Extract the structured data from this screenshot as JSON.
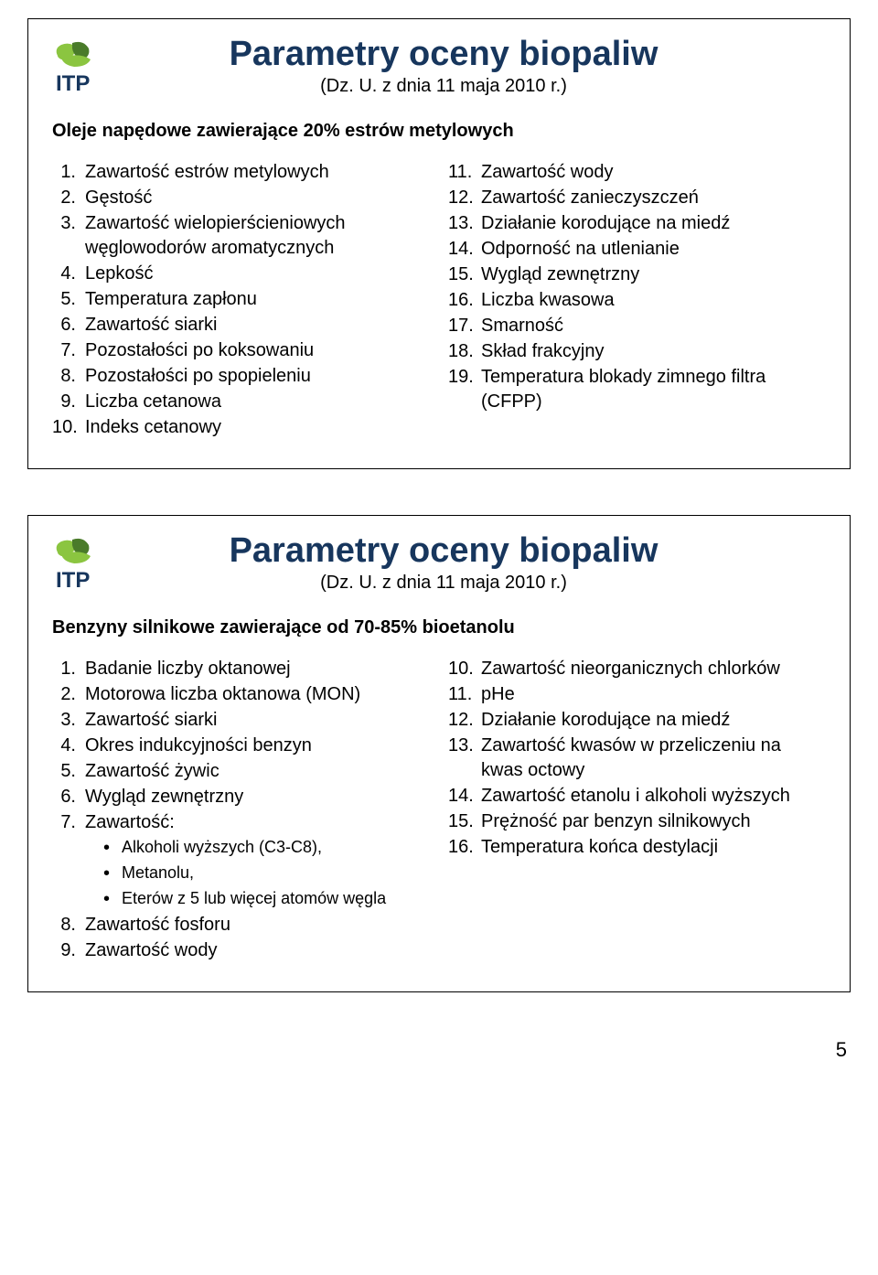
{
  "colors": {
    "title": "#17365d",
    "text": "#000000",
    "border": "#000000",
    "logo_green_light": "#8bc540",
    "logo_green_dark": "#4a7b2a",
    "logo_blue": "#17365d"
  },
  "page_number": "5",
  "slides": [
    {
      "title": "Parametry oceny biopaliw",
      "subtitle": "(Dz. U. z dnia 11 maja 2010 r.)",
      "section": "Oleje napędowe zawierające 20% estrów metylowych",
      "left": [
        {
          "n": "1.",
          "t": "Zawartość estrów metylowych"
        },
        {
          "n": "2.",
          "t": "Gęstość"
        },
        {
          "n": "3.",
          "t": "Zawartość wielopierścieniowych węglowodorów aromatycznych"
        },
        {
          "n": "4.",
          "t": "Lepkość"
        },
        {
          "n": "5.",
          "t": "Temperatura zapłonu"
        },
        {
          "n": "6.",
          "t": "Zawartość siarki"
        },
        {
          "n": "7.",
          "t": "Pozostałości po koksowaniu"
        },
        {
          "n": "8.",
          "t": "Pozostałości po spopieleniu"
        },
        {
          "n": "9.",
          "t": "Liczba cetanowa"
        },
        {
          "n": "10.",
          "t": "Indeks cetanowy"
        }
      ],
      "right": [
        {
          "n": "11.",
          "t": "Zawartość wody"
        },
        {
          "n": "12.",
          "t": "Zawartość zanieczyszczeń"
        },
        {
          "n": "13.",
          "t": "Działanie korodujące na miedź"
        },
        {
          "n": "14.",
          "t": "Odporność na utlenianie"
        },
        {
          "n": "15.",
          "t": "Wygląd zewnętrzny"
        },
        {
          "n": "16.",
          "t": "Liczba kwasowa"
        },
        {
          "n": "17.",
          "t": "Smarność"
        },
        {
          "n": "18.",
          "t": "Skład frakcyjny"
        },
        {
          "n": "19.",
          "t": "Temperatura blokady zimnego filtra (CFPP)"
        }
      ]
    },
    {
      "title": "Parametry oceny biopaliw",
      "subtitle": "(Dz. U. z dnia 11 maja 2010 r.)",
      "section": "Benzyny silnikowe zawierające od 70-85% bioetanolu",
      "left": [
        {
          "n": "1.",
          "t": "Badanie liczby oktanowej"
        },
        {
          "n": "2.",
          "t": "Motorowa liczba oktanowa (MON)"
        },
        {
          "n": "3.",
          "t": "Zawartość siarki"
        },
        {
          "n": "4.",
          "t": "Okres indukcyjności benzyn"
        },
        {
          "n": "5.",
          "t": "Zawartość żywic"
        },
        {
          "n": "6.",
          "t": "Wygląd zewnętrzny"
        },
        {
          "n": "7.",
          "t": "Zawartość:"
        }
      ],
      "left_sub": [
        "Alkoholi wyższych (C3-C8),",
        "Metanolu,",
        "Eterów z 5 lub więcej atomów węgla"
      ],
      "left_after": [
        {
          "n": "8.",
          "t": "Zawartość fosforu"
        },
        {
          "n": "9.",
          "t": "Zawartość wody"
        }
      ],
      "right": [
        {
          "n": "10.",
          "t": "Zawartość nieorganicznych chlorków"
        },
        {
          "n": "11.",
          "t": "pHe"
        },
        {
          "n": "12.",
          "t": "Działanie korodujące na miedź"
        },
        {
          "n": "13.",
          "t": "Zawartość kwasów w przeliczeniu na kwas octowy"
        },
        {
          "n": "14.",
          "t": "Zawartość etanolu i alkoholi wyższych"
        },
        {
          "n": "15.",
          "t": "Prężność par benzyn silnikowych"
        },
        {
          "n": "16.",
          "t": "Temperatura końca destylacji"
        }
      ]
    }
  ]
}
